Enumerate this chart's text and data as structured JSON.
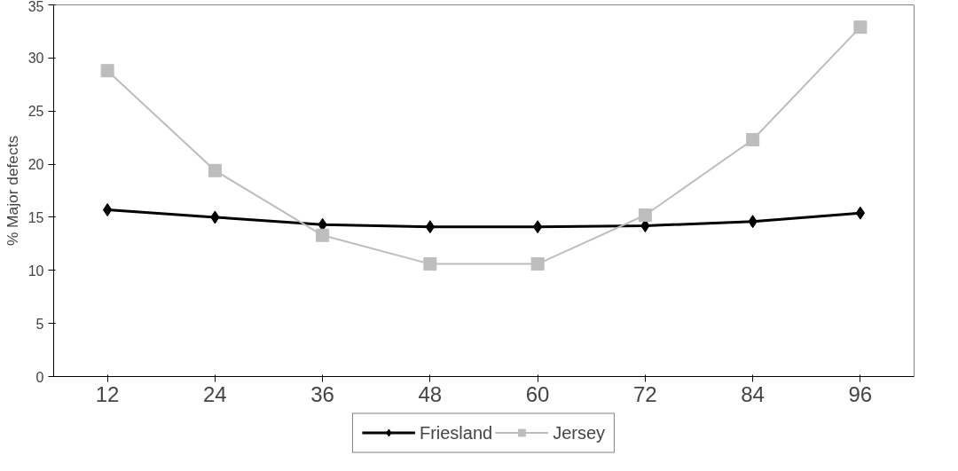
{
  "chart_data": {
    "type": "line",
    "ylabel": "% Major defects",
    "categories": [
      "12",
      "24",
      "36",
      "48",
      "60",
      "72",
      "84",
      "96"
    ],
    "series": [
      {
        "name": "Friesland",
        "color": "#000000",
        "marker": "diamond",
        "values": [
          15.7,
          15.0,
          14.3,
          14.1,
          14.1,
          14.2,
          14.6,
          15.4
        ]
      },
      {
        "name": "Jersey",
        "color": "#bdbdbd",
        "marker": "square",
        "values": [
          28.8,
          19.4,
          13.3,
          10.6,
          10.6,
          15.2,
          22.3,
          32.9
        ]
      }
    ],
    "ylim": [
      0,
      35
    ],
    "yticks": [
      0,
      5,
      10,
      15,
      20,
      25,
      30,
      35
    ],
    "grid": false,
    "legend": "bottom"
  }
}
